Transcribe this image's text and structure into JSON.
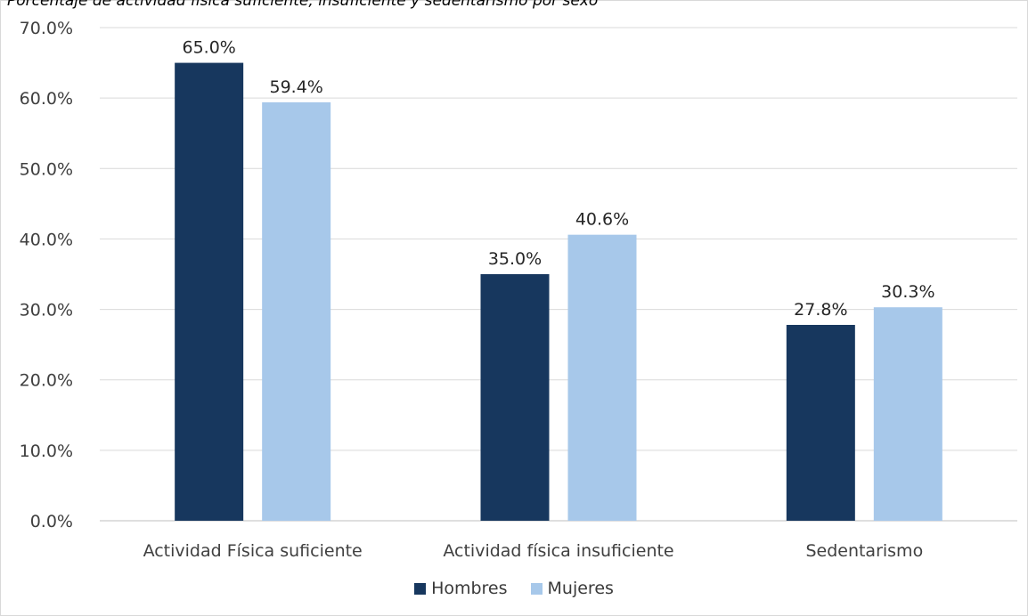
{
  "chart_data": {
    "type": "bar",
    "title": "Porcentaje de actividad física suficiente, insuficiente y sedentarismo por sexo",
    "categories": [
      "Actividad Física suficiente",
      "Actividad física insuficiente",
      "Sedentarismo"
    ],
    "series": [
      {
        "name": "Hombres",
        "values": [
          65.0,
          35.0,
          27.8
        ],
        "color": "#17375e"
      },
      {
        "name": "Mujeres",
        "values": [
          59.4,
          40.6,
          30.3
        ],
        "color": "#a7c8ea"
      }
    ],
    "ylim": [
      0,
      70
    ],
    "yticks": [
      "0.0%",
      "10.0%",
      "20.0%",
      "30.0%",
      "40.0%",
      "50.0%",
      "60.0%",
      "70.0%"
    ],
    "data_labels": [
      [
        "65.0%",
        "35.0%",
        "27.8%"
      ],
      [
        "59.4%",
        "40.6%",
        "30.3%"
      ]
    ],
    "grid": true,
    "legend_position": "bottom"
  }
}
